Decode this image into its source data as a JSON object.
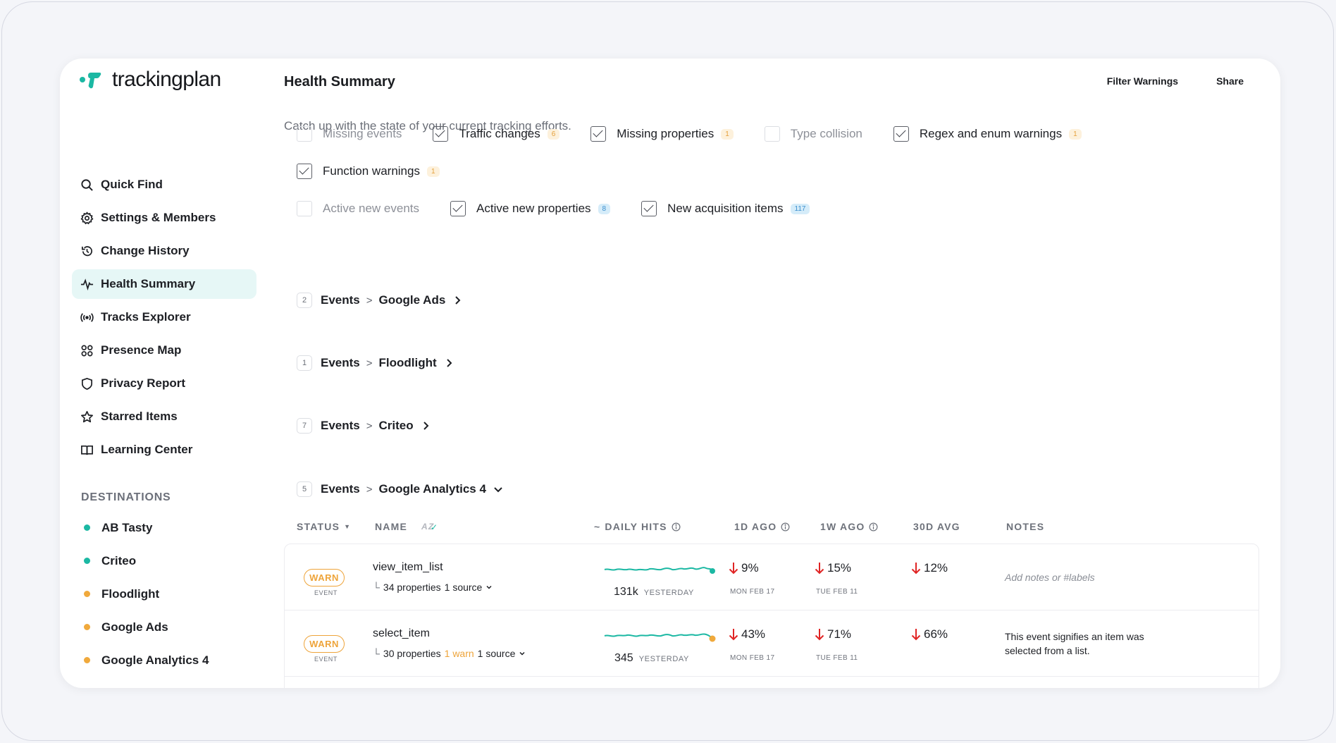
{
  "app": {
    "logo_text": "trackingplan"
  },
  "header": {
    "title": "Health Summary",
    "filter_warnings": "Filter Warnings",
    "share": "Share",
    "subtitle": "Catch up with the state of your current tracking efforts."
  },
  "sidebar": {
    "items": [
      {
        "label": "Quick Find",
        "icon": "search-icon"
      },
      {
        "label": "Settings & Members",
        "icon": "gear-icon"
      },
      {
        "label": "Change History",
        "icon": "history-icon"
      },
      {
        "label": "Health Summary",
        "icon": "pulse-icon",
        "active": true
      },
      {
        "label": "Tracks Explorer",
        "icon": "broadcast-icon"
      },
      {
        "label": "Presence Map",
        "icon": "grid-icon"
      },
      {
        "label": "Privacy Report",
        "icon": "shield-icon"
      },
      {
        "label": "Starred Items",
        "icon": "star-icon"
      },
      {
        "label": "Learning Center",
        "icon": "book-icon"
      }
    ],
    "destinations_title": "DESTINATIONS",
    "destinations": [
      {
        "label": "AB Tasty",
        "color": "#1bb8a3"
      },
      {
        "label": "Criteo",
        "color": "#1bb8a3"
      },
      {
        "label": "Floodlight",
        "color": "#f0a93c"
      },
      {
        "label": "Google Ads",
        "color": "#f0a93c"
      },
      {
        "label": "Google Analytics 4",
        "color": "#f0a93c"
      }
    ]
  },
  "filters": {
    "row1": [
      {
        "label": "Missing events",
        "checked": false,
        "badge": ""
      },
      {
        "label": "Traffic changes",
        "checked": true,
        "badge": "6"
      },
      {
        "label": "Missing properties",
        "checked": true,
        "badge": "1"
      },
      {
        "label": "Type collision",
        "checked": false,
        "badge": ""
      },
      {
        "label": "Regex and enum warnings",
        "checked": true,
        "badge": "1"
      }
    ],
    "row2": [
      {
        "label": "Function warnings",
        "checked": true,
        "badge": "1"
      }
    ],
    "row3": [
      {
        "label": "Active new events",
        "checked": false,
        "badge": ""
      },
      {
        "label": "Active new properties",
        "checked": true,
        "badge": "8"
      },
      {
        "label": "New acquisition items",
        "checked": true,
        "badge": "117"
      }
    ]
  },
  "groups": [
    {
      "count": "2",
      "prefix": "Events",
      "sep": ">",
      "name": "Google Ads",
      "expanded": false
    },
    {
      "count": "1",
      "prefix": "Events",
      "sep": ">",
      "name": "Floodlight",
      "expanded": false
    },
    {
      "count": "7",
      "prefix": "Events",
      "sep": ">",
      "name": "Criteo",
      "expanded": false
    },
    {
      "count": "5",
      "prefix": "Events",
      "sep": ">",
      "name": "Google Analytics 4",
      "expanded": true
    }
  ],
  "table": {
    "headers": {
      "status": "STATUS",
      "name": "NAME",
      "az": "AZ",
      "daily_hits": "DAILY HITS",
      "ago_1d": "1D AGO",
      "ago_1w": "1W AGO",
      "avg_30d": "30D AVG",
      "notes": "NOTES"
    },
    "rows": [
      {
        "status": "WARN",
        "type": "EVENT",
        "name": "view_item_list",
        "properties": "34 properties",
        "warn": "",
        "source": "1 source",
        "hits": "131k",
        "hits_label": "YESTERDAY",
        "d1": "9%",
        "d1_date": "MON FEB 17",
        "w1": "15%",
        "w1_date": "TUE FEB 11",
        "avg30": "12%",
        "note": "Add notes or #labels",
        "note_placeholder": true,
        "dot_color": "#1bb8a3"
      },
      {
        "status": "WARN",
        "type": "EVENT",
        "name": "select_item",
        "properties": "30 properties",
        "warn": "1 warn",
        "source": "1 source",
        "hits": "345",
        "hits_label": "YESTERDAY",
        "d1": "43%",
        "d1_date": "MON FEB 17",
        "w1": "71%",
        "w1_date": "TUE FEB 11",
        "avg30": "66%",
        "note": "This event signifies an item was selected from a list.",
        "note_placeholder": false,
        "dot_color": "#f0a93c"
      }
    ]
  }
}
